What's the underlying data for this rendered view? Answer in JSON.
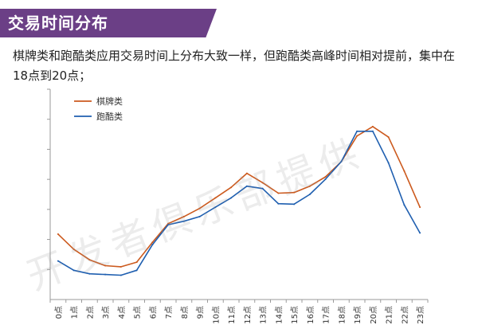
{
  "header": {
    "title": "交易时间分布",
    "description": "棋牌类和跑酷类应用交易时间上分布大致一样，但跑酷类高峰时间相对提前，集中在18点到20点；"
  },
  "watermark": "开发者俱乐部提供",
  "chart_data": {
    "type": "line",
    "categories": [
      "0点",
      "1点",
      "2点",
      "3点",
      "4点",
      "5点",
      "6点",
      "7点",
      "8点",
      "9点",
      "10点",
      "11点",
      "12点",
      "13点",
      "14点",
      "15点",
      "16点",
      "17点",
      "18点",
      "19点",
      "20点",
      "21点",
      "22点",
      "23点"
    ],
    "series": [
      {
        "name": "棋牌类",
        "color": "#cc5a1e",
        "values": [
          28.0,
          21.5,
          17.0,
          14.5,
          14.0,
          16.0,
          24.5,
          32.5,
          35.5,
          39.0,
          43.5,
          48.0,
          54.0,
          50.0,
          45.5,
          45.8,
          48.5,
          52.5,
          59.0,
          70.0,
          74.0,
          69.5,
          55.0,
          39.5
        ]
      },
      {
        "name": "跑酷类",
        "color": "#1f5fb0",
        "values": [
          16.5,
          12.5,
          11.0,
          10.7,
          10.4,
          12.5,
          23.5,
          32.0,
          33.5,
          35.5,
          39.5,
          43.5,
          48.5,
          47.5,
          41.0,
          40.8,
          45.0,
          51.5,
          59.0,
          72.0,
          72.0,
          58.5,
          40.5,
          28.5
        ]
      }
    ],
    "xlabel": "",
    "ylabel": "",
    "ylim": [
      0,
      90
    ],
    "legend_position": "top-left",
    "grid": false
  }
}
